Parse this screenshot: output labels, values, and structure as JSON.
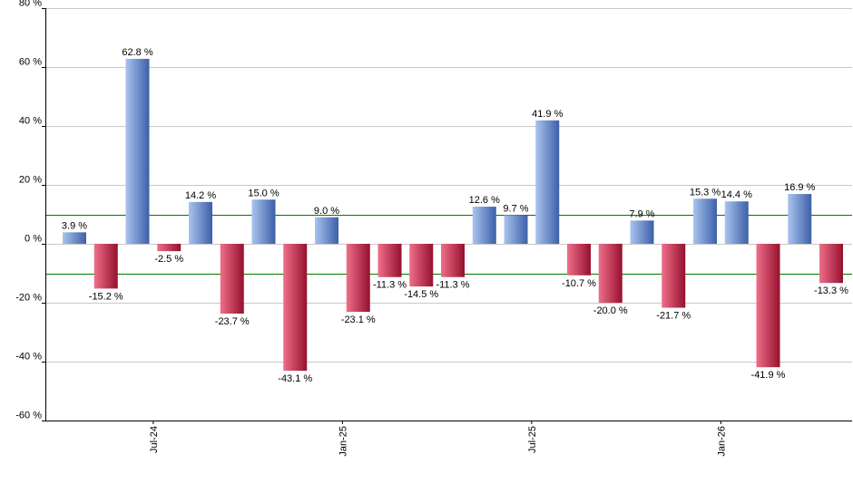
{
  "chart_data": {
    "type": "bar",
    "title": "",
    "xlabel": "",
    "ylabel": "",
    "ylim": [
      -60,
      80
    ],
    "yticks": [
      -60,
      -40,
      -20,
      0,
      20,
      40,
      60,
      80
    ],
    "ytick_labels": [
      "-60 %",
      "-40 %",
      "-20 %",
      "0 %",
      "20 %",
      "40 %",
      "60 %",
      "80 %"
    ],
    "value_suffix": " %",
    "grid": true,
    "legend": "none",
    "reference_lines": [
      10,
      -10
    ],
    "colors": {
      "positive_light": "#a9c4ee",
      "positive_dark": "#3d5fa8",
      "negative_light": "#ef6f8a",
      "negative_dark": "#96102e",
      "reference_line": "#007a00",
      "grid": "#c8c8c8",
      "axis": "#000000"
    },
    "values": [
      3.9,
      -15.2,
      62.8,
      -2.5,
      14.2,
      -23.7,
      15.0,
      -43.1,
      9.0,
      -23.1,
      -11.3,
      -14.5,
      -11.3,
      12.6,
      9.7,
      41.9,
      -10.7,
      -20.0,
      7.9,
      -21.7,
      15.3,
      14.4,
      -41.9,
      16.9,
      -13.3
    ],
    "value_labels": [
      "3.9 %",
      "-15.2 %",
      "62.8 %",
      "-2.5 %",
      "14.2 %",
      "-23.7 %",
      "15.0 %",
      "-43.1 %",
      "9.0 %",
      "-23.1 %",
      "-11.3 %",
      "-14.5 %",
      "-11.3 %",
      "12.6 %",
      "9.7 %",
      "41.9 %",
      "-10.7 %",
      "-20.0 %",
      "7.9 %",
      "-21.7 %",
      "15.3 %",
      "14.4 %",
      "-41.9 %",
      "16.9 %",
      "-13.3 %"
    ],
    "x_tick_labels": [
      {
        "label": "Jul-24",
        "after_bar_index": 2.5
      },
      {
        "label": "Jan-25",
        "after_bar_index": 8.5
      },
      {
        "label": "Jul-25",
        "after_bar_index": 14.5
      },
      {
        "label": "Jan-26",
        "after_bar_index": 20.5
      }
    ]
  }
}
